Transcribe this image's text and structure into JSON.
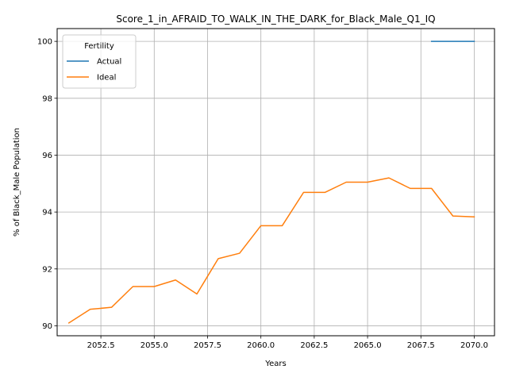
{
  "chart_data": {
    "type": "line",
    "title": "Score_1_in_AFRAID_TO_WALK_IN_THE_DARK_for_Black_Male_Q1_IQ",
    "xlabel": "Years",
    "ylabel": "% of Black_Male Population",
    "xlim": [
      2050.45,
      2070.95
    ],
    "ylim": [
      89.65,
      100.45
    ],
    "xticks": [
      2052.5,
      2055.0,
      2057.5,
      2060.0,
      2062.5,
      2065.0,
      2067.5,
      2070.0
    ],
    "xtick_labels": [
      "2052.5",
      "2055.0",
      "2057.5",
      "2060.0",
      "2062.5",
      "2065.0",
      "2067.5",
      "2070.0"
    ],
    "yticks": [
      90,
      92,
      94,
      96,
      98,
      100
    ],
    "ytick_labels": [
      "90",
      "92",
      "94",
      "96",
      "98",
      "100"
    ],
    "grid": true,
    "legend": {
      "title": "Fertility",
      "placement": "upper-left"
    },
    "series": [
      {
        "name": "Actual",
        "color": "#1f77b4",
        "x": [
          2068,
          2069,
          2070
        ],
        "y": [
          100.0,
          100.0,
          100.0
        ]
      },
      {
        "name": "Ideal",
        "color": "#ff7f0e",
        "x": [
          2051,
          2052,
          2053,
          2054,
          2055,
          2056,
          2057,
          2058,
          2059,
          2060,
          2061,
          2062,
          2063,
          2064,
          2065,
          2066,
          2067,
          2068,
          2069,
          2070
        ],
        "y": [
          90.1,
          90.58,
          90.65,
          91.38,
          91.38,
          91.61,
          91.12,
          92.36,
          92.55,
          93.52,
          93.52,
          94.69,
          94.69,
          95.05,
          95.05,
          95.2,
          94.83,
          94.83,
          93.86,
          93.83
        ]
      }
    ]
  }
}
